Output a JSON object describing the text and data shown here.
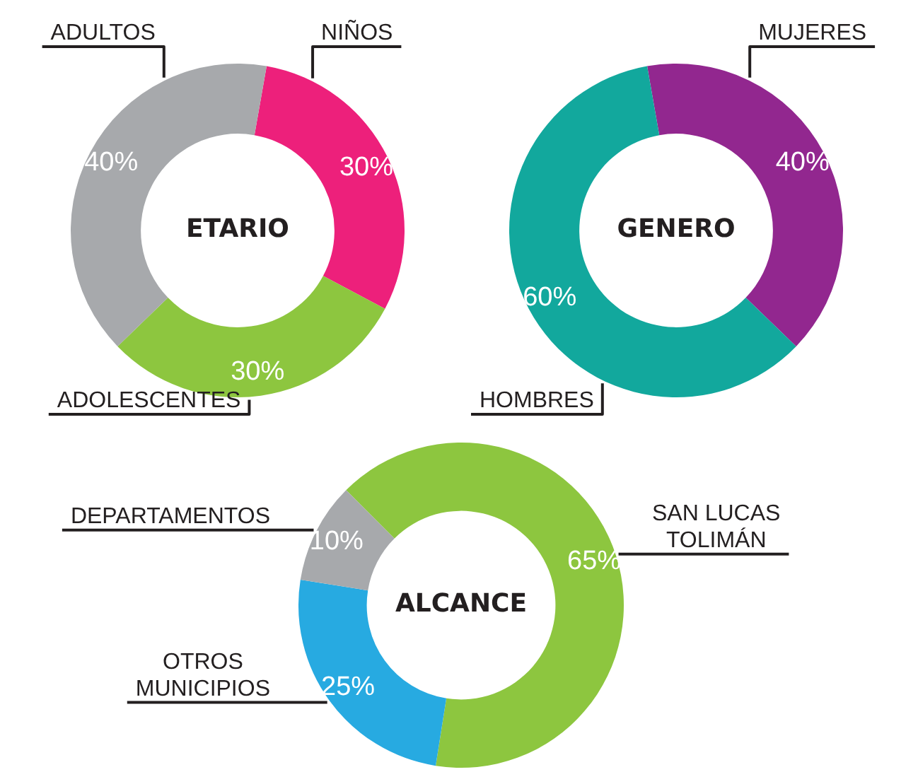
{
  "chart_data": [
    {
      "type": "donut",
      "title": "ETARIO",
      "categories": [
        "NIÑOS",
        "ADOLESCENTES",
        "ADULTOS"
      ],
      "values": [
        30,
        30,
        40
      ],
      "colors": [
        "#ed207b",
        "#8dc63f",
        "#a7a9ac"
      ],
      "value_labels": [
        "30%",
        "30%",
        "40%"
      ],
      "legend": false
    },
    {
      "type": "donut",
      "title": "GENERO",
      "categories": [
        "MUJERES",
        "HOMBRES"
      ],
      "values": [
        40,
        60
      ],
      "colors": [
        "#92278f",
        "#12a89d"
      ],
      "value_labels": [
        "40%",
        "60%"
      ],
      "legend": false
    },
    {
      "type": "donut",
      "title": "ALCANCE",
      "categories": [
        "SAN LUCAS TOLIMÁN",
        "OTROS MUNICIPIOS",
        "DEPARTAMENTOS"
      ],
      "values": [
        65,
        25,
        10
      ],
      "colors": [
        "#8dc63f",
        "#27aae1",
        "#a7a9ac"
      ],
      "value_labels": [
        "65%",
        "25%",
        "10%"
      ],
      "legend": false
    }
  ]
}
